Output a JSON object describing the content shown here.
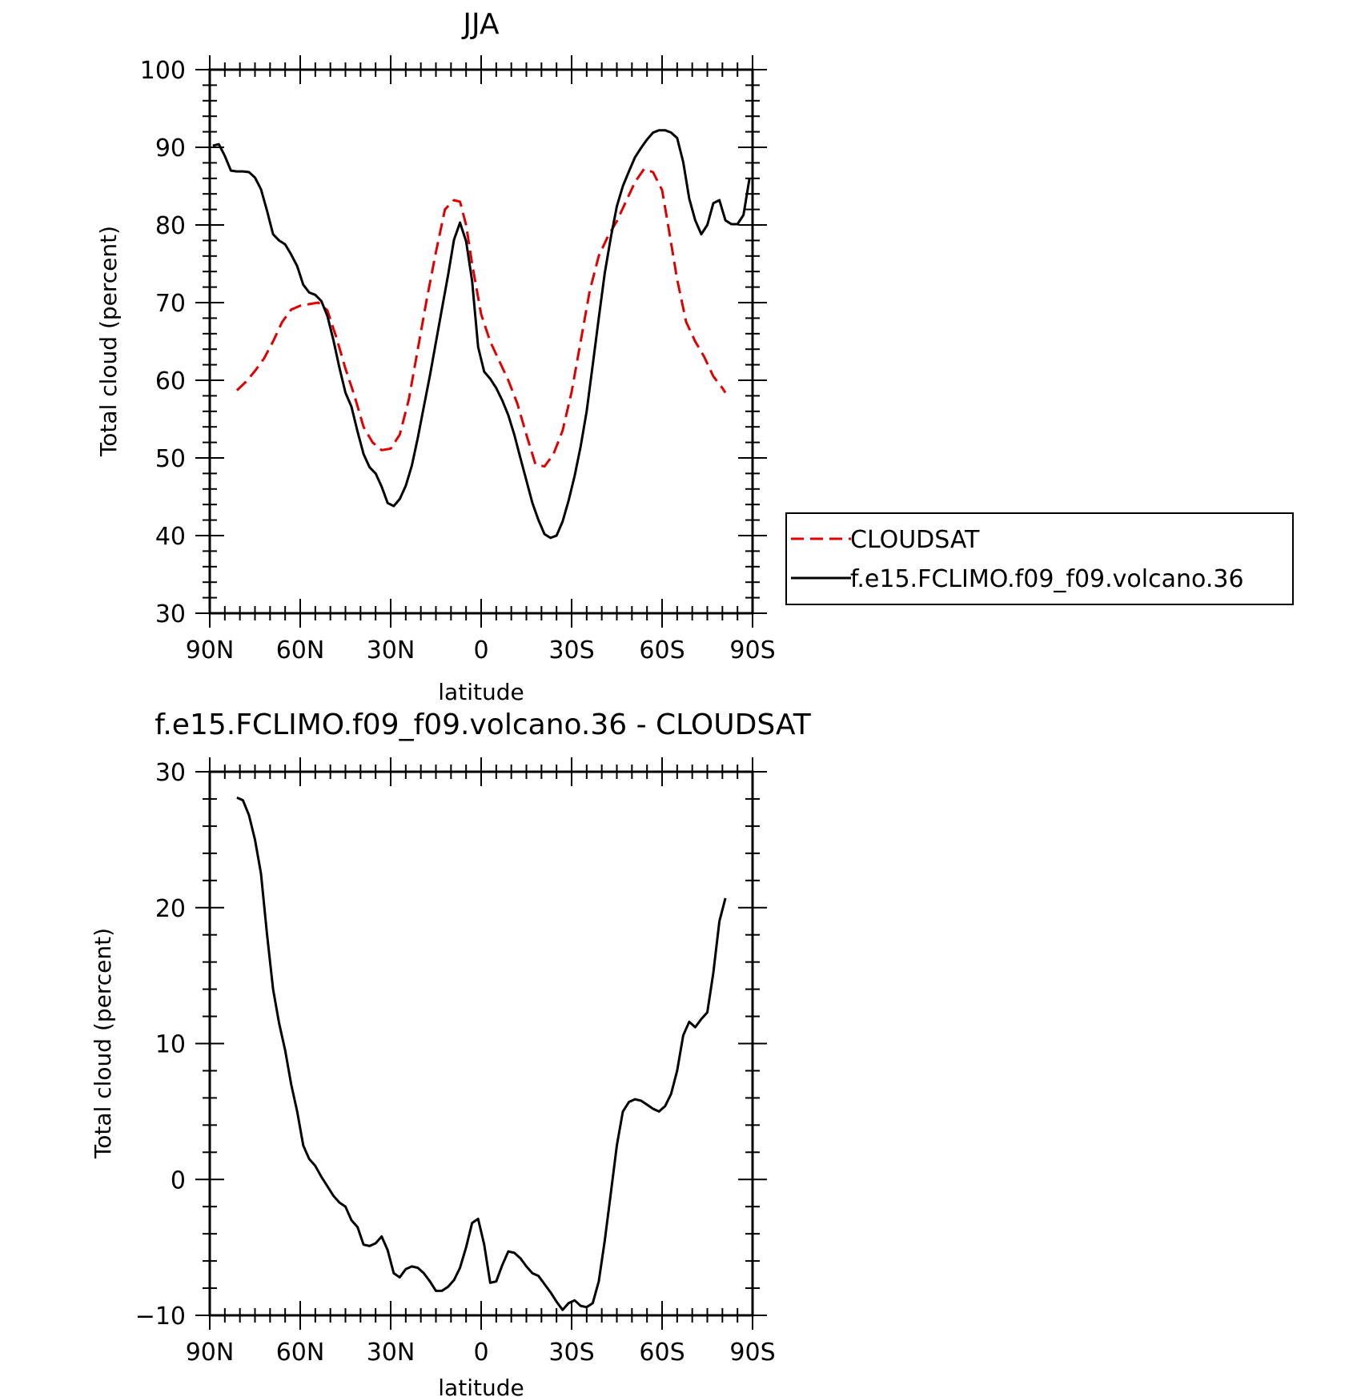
{
  "chart_data": [
    {
      "type": "line",
      "title": "JJA",
      "xlabel": "latitude",
      "ylabel": "Total cloud (percent)",
      "xlim": [
        -90,
        90
      ],
      "ylim": [
        30,
        100
      ],
      "xticks": [
        -90,
        -60,
        -30,
        0,
        30,
        60,
        90
      ],
      "xtick_labels": [
        "90N",
        "60N",
        "30N",
        "0",
        "30S",
        "60S",
        "90S"
      ],
      "yticks": [
        30,
        40,
        50,
        60,
        70,
        80,
        90,
        100
      ],
      "ytick_labels": [
        "30",
        "40",
        "50",
        "60",
        "70",
        "80",
        "90",
        "100"
      ],
      "grid": false,
      "legend": {
        "placement": "right",
        "entries": [
          "CLOUDSAT",
          "f.e15.FCLIMO.f09_f09.volcano.36"
        ]
      },
      "series": [
        {
          "name": "CLOUDSAT",
          "color": "#e00000",
          "dash": "dashed",
          "x": [
            -81,
            -78,
            -75,
            -72,
            -69,
            -66,
            -63,
            -60,
            -57,
            -54,
            -51,
            -48,
            -45,
            -42,
            -39,
            -36,
            -33,
            -30,
            -27,
            -24,
            -21,
            -18,
            -15,
            -12,
            -9,
            -7,
            -5,
            -3,
            0,
            3,
            6,
            9,
            12,
            15,
            18,
            21,
            24,
            27,
            30,
            33,
            36,
            39,
            42,
            45,
            48,
            51,
            54,
            57,
            60,
            62,
            65,
            68,
            71,
            74,
            77,
            80,
            81
          ],
          "y": [
            58.7,
            59.8,
            61.2,
            62.8,
            65.0,
            67.5,
            69.1,
            69.6,
            69.8,
            70.0,
            69.0,
            65.5,
            61.5,
            58.0,
            54.0,
            52.0,
            51.0,
            51.2,
            53.0,
            57.5,
            64.0,
            70.5,
            76.5,
            82.0,
            83.2,
            83.0,
            80.0,
            75.0,
            68.5,
            65.0,
            62.5,
            60.0,
            57.0,
            53.0,
            49.2,
            48.9,
            50.5,
            53.5,
            58.5,
            65.0,
            71.5,
            76.0,
            78.5,
            80.5,
            83.0,
            85.5,
            87.2,
            86.8,
            84.5,
            80.0,
            73.0,
            67.5,
            65.0,
            63.0,
            60.5,
            59.0,
            58.4
          ]
        },
        {
          "name": "f.e15.FCLIMO.f09_f09.volcano.36",
          "color": "#000000",
          "dash": "solid",
          "x": [
            -89,
            -87,
            -85,
            -83,
            -81,
            -79,
            -77,
            -75,
            -73,
            -71,
            -69,
            -67,
            -65,
            -63,
            -61,
            -59,
            -57,
            -55,
            -53,
            -51,
            -49,
            -47,
            -45,
            -43,
            -41,
            -39,
            -37,
            -35,
            -33,
            -31,
            -29,
            -27,
            -25,
            -23,
            -21,
            -19,
            -17,
            -15,
            -13,
            -11,
            -9,
            -7,
            -5,
            -3,
            -1,
            1,
            3,
            5,
            7,
            9,
            11,
            13,
            15,
            17,
            19,
            21,
            23,
            25,
            27,
            29,
            31,
            33,
            35,
            37,
            39,
            41,
            43,
            45,
            47,
            49,
            51,
            53,
            55,
            57,
            59,
            61,
            63,
            65,
            67,
            69,
            71,
            73,
            75,
            77,
            79,
            81,
            83,
            85,
            87,
            89
          ],
          "y": [
            90.2,
            90.4,
            88.9,
            87.0,
            86.9,
            86.9,
            86.8,
            86.1,
            84.6,
            81.8,
            78.8,
            78.0,
            77.5,
            76.2,
            74.7,
            72.3,
            71.3,
            71.0,
            70.2,
            68.3,
            65.2,
            61.6,
            58.4,
            56.6,
            53.4,
            50.5,
            48.8,
            48.0,
            46.3,
            44.2,
            43.8,
            44.7,
            46.4,
            49.0,
            52.6,
            56.6,
            60.6,
            64.9,
            69.2,
            73.5,
            78.1,
            80.3,
            77.9,
            72.8,
            64.3,
            61.1,
            60.2,
            59.0,
            57.4,
            55.5,
            53.0,
            50.0,
            47.1,
            44.2,
            42.0,
            40.2,
            39.7,
            40.0,
            41.8,
            44.5,
            47.7,
            51.5,
            56.0,
            62.0,
            68.0,
            73.8,
            78.4,
            82.4,
            85.0,
            86.9,
            88.7,
            89.9,
            91.0,
            91.9,
            92.2,
            92.2,
            91.9,
            91.2,
            88.1,
            83.4,
            80.6,
            78.8,
            80.0,
            82.8,
            83.2,
            80.6,
            80.1,
            80.1,
            81.3,
            86.0
          ]
        }
      ]
    },
    {
      "type": "line",
      "title": "f.e15.FCLIMO.f09_f09.volcano.36 - CLOUDSAT",
      "xlabel": "latitude",
      "ylabel": "Total cloud (percent)",
      "xlim": [
        -90,
        90
      ],
      "ylim": [
        -10,
        30
      ],
      "xticks": [
        -90,
        -60,
        -30,
        0,
        30,
        60,
        90
      ],
      "xtick_labels": [
        "90N",
        "60N",
        "30N",
        "0",
        "30S",
        "60S",
        "90S"
      ],
      "yticks": [
        -10,
        0,
        10,
        20,
        30
      ],
      "ytick_labels": [
        "−10",
        "0",
        "10",
        "20",
        "30"
      ],
      "grid": false,
      "series": [
        {
          "color": "#000000",
          "dash": "solid",
          "x": [
            -81,
            -79,
            -77,
            -75,
            -73,
            -71,
            -69,
            -67,
            -65,
            -63,
            -61,
            -59,
            -57,
            -55,
            -53,
            -51,
            -49,
            -47,
            -45,
            -43,
            -41,
            -39,
            -37,
            -35,
            -33,
            -31,
            -29,
            -27,
            -25,
            -23,
            -21,
            -19,
            -17,
            -15,
            -13,
            -11,
            -9,
            -7,
            -5,
            -3,
            -1,
            1,
            3,
            5,
            7,
            9,
            11,
            13,
            15,
            17,
            19,
            21,
            23,
            25,
            27,
            29,
            31,
            33,
            35,
            37,
            39,
            41,
            43,
            45,
            47,
            49,
            51,
            53,
            55,
            57,
            59,
            61,
            63,
            65,
            67,
            69,
            71,
            73,
            75,
            77,
            79,
            81
          ],
          "y": [
            28.1,
            27.9,
            26.8,
            25.0,
            22.5,
            18.0,
            14.0,
            11.5,
            9.5,
            7.0,
            5.0,
            2.5,
            1.5,
            1.0,
            0.2,
            -0.5,
            -1.2,
            -1.7,
            -2.0,
            -3.0,
            -3.5,
            -4.8,
            -4.9,
            -4.7,
            -4.2,
            -5.2,
            -6.9,
            -7.2,
            -6.6,
            -6.4,
            -6.5,
            -6.9,
            -7.5,
            -8.2,
            -8.2,
            -7.9,
            -7.4,
            -6.5,
            -5.0,
            -3.2,
            -2.9,
            -4.8,
            -7.6,
            -7.5,
            -6.3,
            -5.3,
            -5.4,
            -5.8,
            -6.4,
            -6.9,
            -7.1,
            -7.7,
            -8.3,
            -9.0,
            -9.6,
            -9.1,
            -8.9,
            -9.3,
            -9.4,
            -9.1,
            -7.5,
            -4.5,
            -1.0,
            2.5,
            5.0,
            5.7,
            5.9,
            5.8,
            5.5,
            5.2,
            5.0,
            5.4,
            6.3,
            8.0,
            10.6,
            11.6,
            11.2,
            11.8,
            12.3,
            15.2,
            19.0,
            20.7
          ]
        }
      ]
    }
  ]
}
